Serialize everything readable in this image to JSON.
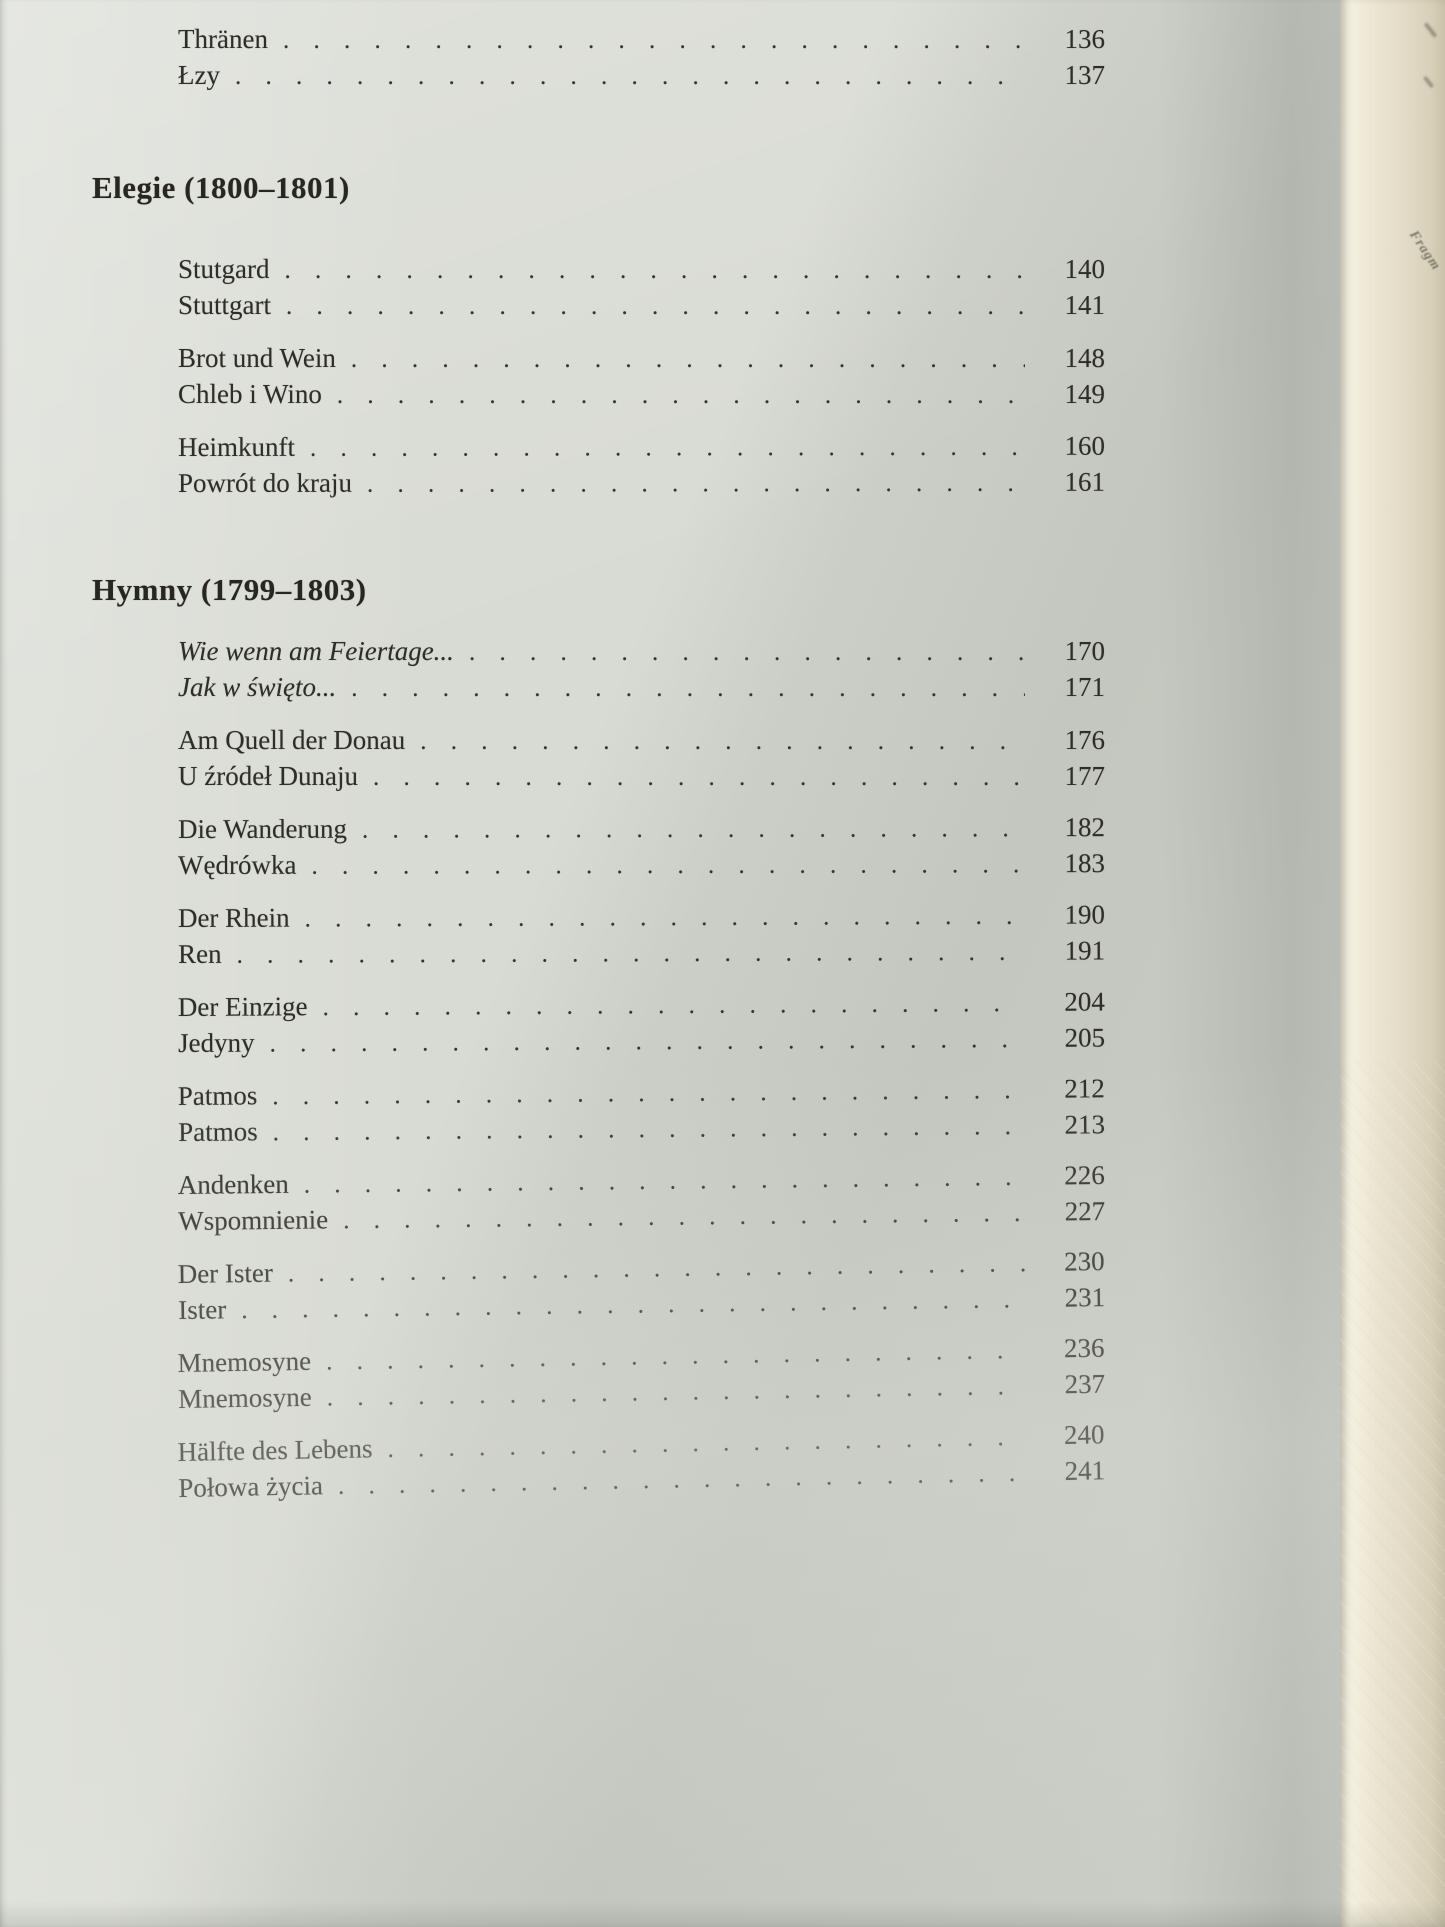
{
  "toc": {
    "sections": [
      {
        "heading": "",
        "entries": [
          {
            "title": "Thränen",
            "page": "136"
          },
          {
            "title": "Łzy",
            "page": "137"
          }
        ]
      },
      {
        "heading": "Elegie (1800–1801)",
        "entries": [
          {
            "title": "Stutgard",
            "page": "140"
          },
          {
            "title": "Stuttgart",
            "page": "141"
          },
          {
            "title": "Brot und Wein",
            "page": "148"
          },
          {
            "title": "Chleb i Wino",
            "page": "149"
          },
          {
            "title": "Heimkunft",
            "page": "160"
          },
          {
            "title": "Powrót do kraju",
            "page": "161"
          }
        ]
      },
      {
        "heading": "Hymny (1799–1803)",
        "entries": [
          {
            "title": "Wie wenn am Feiertage...",
            "page": "170",
            "style": "italic"
          },
          {
            "title": "Jak w święto...",
            "page": "171",
            "style": "italic"
          },
          {
            "title": "Am Quell der Donau",
            "page": "176"
          },
          {
            "title": "U źródeł Dunaju",
            "page": "177"
          },
          {
            "title": "Die Wanderung",
            "page": "182"
          },
          {
            "title": "Wędrówka",
            "page": "183"
          },
          {
            "title": "Der Rhein",
            "page": "190"
          },
          {
            "title": "Ren",
            "page": "191"
          },
          {
            "title": "Der Einzige",
            "page": "204"
          },
          {
            "title": "Jedyny",
            "page": "205"
          },
          {
            "title": "Patmos",
            "page": "212"
          },
          {
            "title": "Patmos",
            "page": "213"
          },
          {
            "title": "Andenken",
            "page": "226"
          },
          {
            "title": "Wspomnienie",
            "page": "227"
          },
          {
            "title": "Der Ister",
            "page": "230"
          },
          {
            "title": "Ister",
            "page": "231"
          },
          {
            "title": "Mnemosyne",
            "page": "236"
          },
          {
            "title": "Mnemosyne",
            "page": "237"
          },
          {
            "title": "Hälfte des Lebens",
            "page": "240"
          },
          {
            "title": "Połowa życia",
            "page": "241"
          }
        ]
      }
    ]
  },
  "facing_page": {
    "showthrough_text": "Fragm"
  }
}
